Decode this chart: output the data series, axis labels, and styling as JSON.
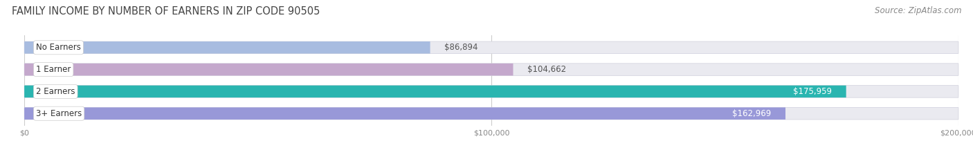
{
  "title": "FAMILY INCOME BY NUMBER OF EARNERS IN ZIP CODE 90505",
  "source": "Source: ZipAtlas.com",
  "categories": [
    "No Earners",
    "1 Earner",
    "2 Earners",
    "3+ Earners"
  ],
  "values": [
    86894,
    104662,
    175959,
    162969
  ],
  "bar_colors": [
    "#a8bce0",
    "#c4a8cc",
    "#2ab5b0",
    "#9898d8"
  ],
  "bar_track_color": "#eaeaf0",
  "value_labels": [
    "$86,894",
    "$104,662",
    "$175,959",
    "$162,969"
  ],
  "xmax": 200000,
  "xtick_labels": [
    "$0",
    "$100,000",
    "$200,000"
  ],
  "xtick_vals": [
    0,
    100000,
    200000
  ],
  "background_color": "#ffffff",
  "title_fontsize": 10.5,
  "source_fontsize": 8.5,
  "label_fontsize": 8.5,
  "value_fontsize": 8.5,
  "inside_label_threshold": 150000,
  "label_bg_color": "#ffffff",
  "label_text_color": "#555555",
  "inside_value_color": "#ffffff",
  "outside_value_color": "#555555",
  "grid_color": "#cccccc",
  "tick_color": "#888888"
}
